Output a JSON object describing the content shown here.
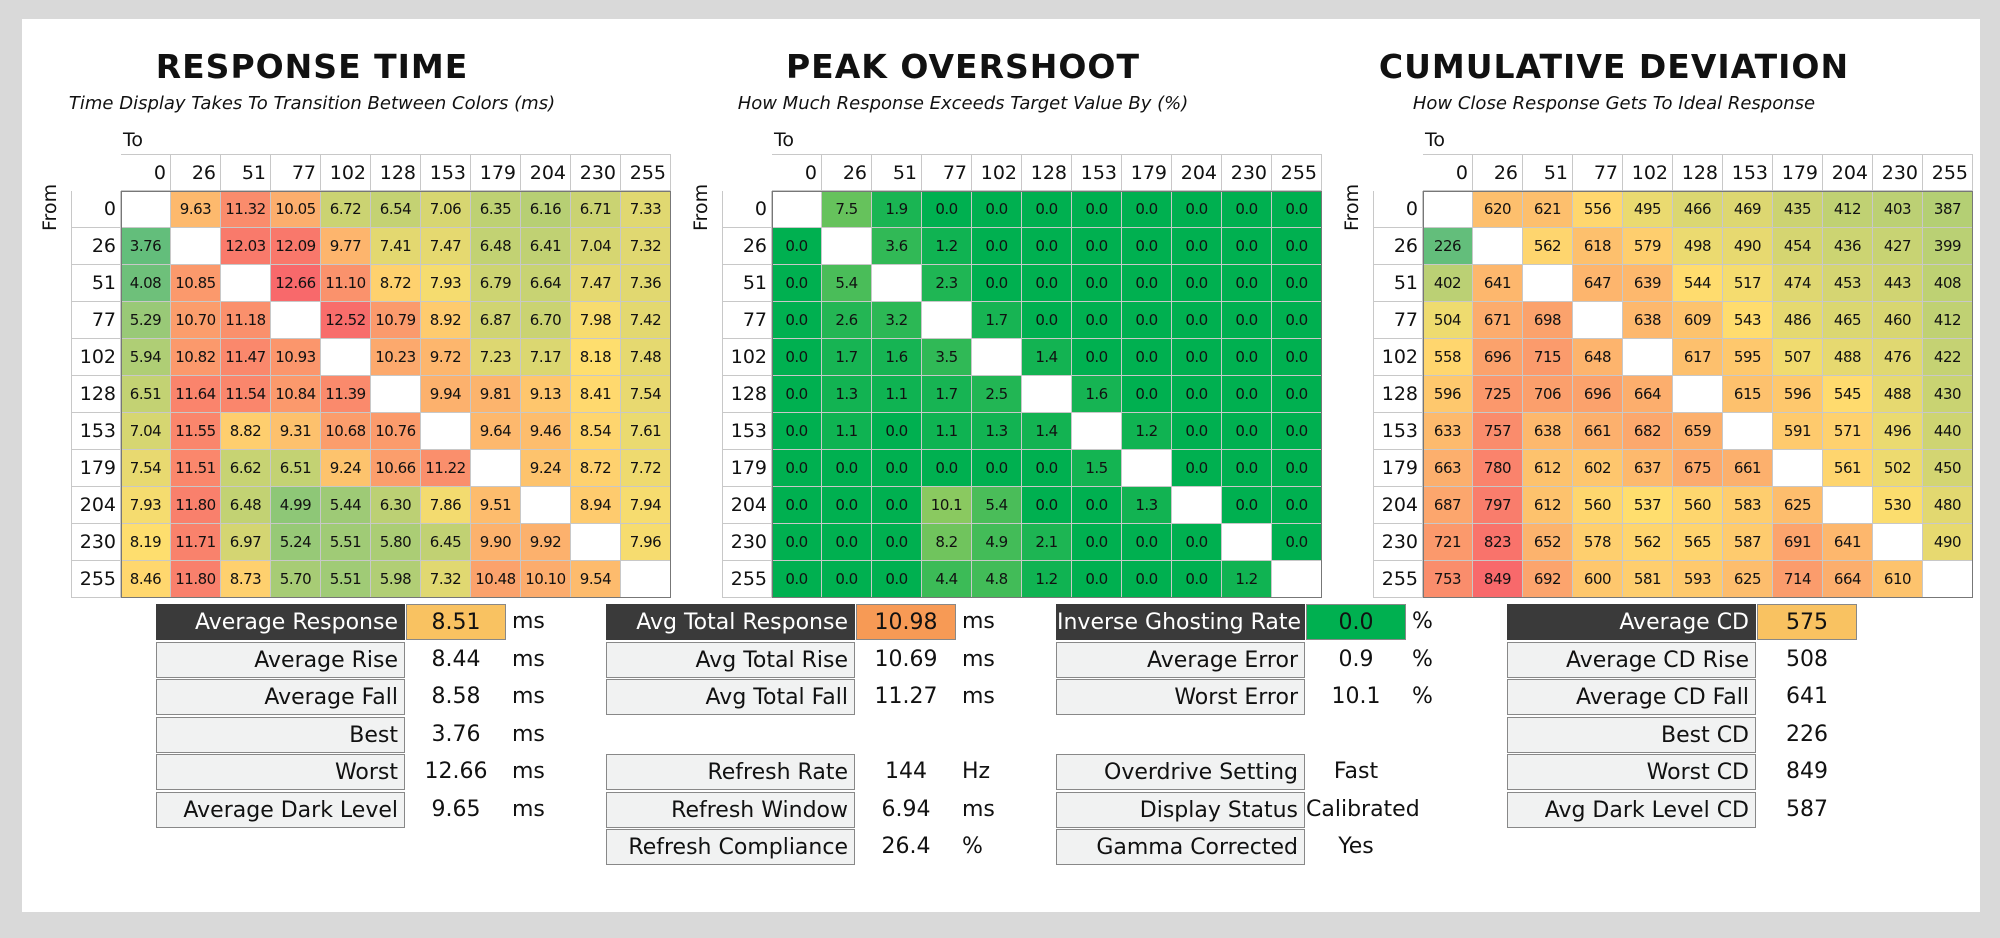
{
  "levels": [
    "0",
    "26",
    "51",
    "77",
    "102",
    "128",
    "153",
    "179",
    "204",
    "230",
    "255"
  ],
  "axis": {
    "to_label": "To",
    "from_label": "From"
  },
  "colors": {
    "dark_header": "#3a3a3a",
    "avg_response": "#f9c261",
    "avg_total_response": "#f79a55",
    "inverse_ghosting": "#00b050",
    "average_cd": "#f9c261"
  },
  "chart_data": [
    {
      "type": "heatmap",
      "title": "RESPONSE TIME",
      "subtitle": "Time Display Takes To Transition Between Colors (ms)",
      "xlabel": "To",
      "ylabel": "From",
      "x": [
        "0",
        "26",
        "51",
        "77",
        "102",
        "128",
        "153",
        "179",
        "204",
        "230",
        "255"
      ],
      "y": [
        "0",
        "26",
        "51",
        "77",
        "102",
        "128",
        "153",
        "179",
        "204",
        "230",
        "255"
      ],
      "values": [
        [
          null,
          "9.63",
          "11.32",
          "10.05",
          "6.72",
          "6.54",
          "7.06",
          "6.35",
          "6.16",
          "6.71",
          "7.33"
        ],
        [
          "3.76",
          null,
          "12.03",
          "12.09",
          "9.77",
          "7.41",
          "7.47",
          "6.48",
          "6.41",
          "7.04",
          "7.32"
        ],
        [
          "4.08",
          "10.85",
          null,
          "12.66",
          "11.10",
          "8.72",
          "7.93",
          "6.79",
          "6.64",
          "7.47",
          "7.36"
        ],
        [
          "5.29",
          "10.70",
          "11.18",
          null,
          "12.52",
          "10.79",
          "8.92",
          "6.87",
          "6.70",
          "7.98",
          "7.42"
        ],
        [
          "5.94",
          "10.82",
          "11.47",
          "10.93",
          null,
          "10.23",
          "9.72",
          "7.23",
          "7.17",
          "8.18",
          "7.48"
        ],
        [
          "6.51",
          "11.64",
          "11.54",
          "10.84",
          "11.39",
          null,
          "9.94",
          "9.81",
          "9.13",
          "8.41",
          "7.54"
        ],
        [
          "7.04",
          "11.55",
          "8.82",
          "9.31",
          "10.68",
          "10.76",
          null,
          "9.64",
          "9.46",
          "8.54",
          "7.61"
        ],
        [
          "7.54",
          "11.51",
          "6.62",
          "6.51",
          "9.24",
          "10.66",
          "11.22",
          null,
          "9.24",
          "8.72",
          "7.72"
        ],
        [
          "7.93",
          "11.80",
          "6.48",
          "4.99",
          "5.44",
          "6.30",
          "7.86",
          "9.51",
          null,
          "8.94",
          "7.94"
        ],
        [
          "8.19",
          "11.71",
          "6.97",
          "5.24",
          "5.51",
          "5.80",
          "6.45",
          "9.90",
          "9.92",
          null,
          "7.96"
        ],
        [
          "8.46",
          "11.80",
          "8.73",
          "5.70",
          "5.51",
          "5.98",
          "7.32",
          "10.48",
          "10.10",
          "9.54",
          null
        ]
      ],
      "color_scale": "green-yellow-red"
    },
    {
      "type": "heatmap",
      "title": "PEAK OVERSHOOT",
      "subtitle": "How Much Response Exceeds Target Value By (%)",
      "xlabel": "To",
      "ylabel": "From",
      "x": [
        "0",
        "26",
        "51",
        "77",
        "102",
        "128",
        "153",
        "179",
        "204",
        "230",
        "255"
      ],
      "y": [
        "0",
        "26",
        "51",
        "77",
        "102",
        "128",
        "153",
        "179",
        "204",
        "230",
        "255"
      ],
      "values": [
        [
          null,
          "7.5",
          "1.9",
          "0.0",
          "0.0",
          "0.0",
          "0.0",
          "0.0",
          "0.0",
          "0.0",
          "0.0"
        ],
        [
          "0.0",
          null,
          "3.6",
          "1.2",
          "0.0",
          "0.0",
          "0.0",
          "0.0",
          "0.0",
          "0.0",
          "0.0"
        ],
        [
          "0.0",
          "5.4",
          null,
          "2.3",
          "0.0",
          "0.0",
          "0.0",
          "0.0",
          "0.0",
          "0.0",
          "0.0"
        ],
        [
          "0.0",
          "2.6",
          "3.2",
          null,
          "1.7",
          "0.0",
          "0.0",
          "0.0",
          "0.0",
          "0.0",
          "0.0"
        ],
        [
          "0.0",
          "1.7",
          "1.6",
          "3.5",
          null,
          "1.4",
          "0.0",
          "0.0",
          "0.0",
          "0.0",
          "0.0"
        ],
        [
          "0.0",
          "1.3",
          "1.1",
          "1.7",
          "2.5",
          null,
          "1.6",
          "0.0",
          "0.0",
          "0.0",
          "0.0"
        ],
        [
          "0.0",
          "1.1",
          "0.0",
          "1.1",
          "1.3",
          "1.4",
          null,
          "1.2",
          "0.0",
          "0.0",
          "0.0"
        ],
        [
          "0.0",
          "0.0",
          "0.0",
          "0.0",
          "0.0",
          "0.0",
          "1.5",
          null,
          "0.0",
          "0.0",
          "0.0"
        ],
        [
          "0.0",
          "0.0",
          "0.0",
          "10.1",
          "5.4",
          "0.0",
          "0.0",
          "1.3",
          null,
          "0.0",
          "0.0"
        ],
        [
          "0.0",
          "0.0",
          "0.0",
          "8.2",
          "4.9",
          "2.1",
          "0.0",
          "0.0",
          "0.0",
          null,
          "0.0"
        ],
        [
          "0.0",
          "0.0",
          "0.0",
          "4.4",
          "4.8",
          "1.2",
          "0.0",
          "0.0",
          "0.0",
          "1.2",
          null
        ]
      ],
      "color_scale": "green"
    },
    {
      "type": "heatmap",
      "title": "CUMULATIVE DEVIATION",
      "subtitle": "How Close Response Gets To Ideal Response",
      "xlabel": "To",
      "ylabel": "From",
      "x": [
        "0",
        "26",
        "51",
        "77",
        "102",
        "128",
        "153",
        "179",
        "204",
        "230",
        "255"
      ],
      "y": [
        "0",
        "26",
        "51",
        "77",
        "102",
        "128",
        "153",
        "179",
        "204",
        "230",
        "255"
      ],
      "values": [
        [
          null,
          "620",
          "621",
          "556",
          "495",
          "466",
          "469",
          "435",
          "412",
          "403",
          "387"
        ],
        [
          "226",
          null,
          "562",
          "618",
          "579",
          "498",
          "490",
          "454",
          "436",
          "427",
          "399"
        ],
        [
          "402",
          "641",
          null,
          "647",
          "639",
          "544",
          "517",
          "474",
          "453",
          "443",
          "408"
        ],
        [
          "504",
          "671",
          "698",
          null,
          "638",
          "609",
          "543",
          "486",
          "465",
          "460",
          "412"
        ],
        [
          "558",
          "696",
          "715",
          "648",
          null,
          "617",
          "595",
          "507",
          "488",
          "476",
          "422"
        ],
        [
          "596",
          "725",
          "706",
          "696",
          "664",
          null,
          "615",
          "596",
          "545",
          "488",
          "430"
        ],
        [
          "633",
          "757",
          "638",
          "661",
          "682",
          "659",
          null,
          "591",
          "571",
          "496",
          "440"
        ],
        [
          "663",
          "780",
          "612",
          "602",
          "637",
          "675",
          "661",
          null,
          "561",
          "502",
          "450"
        ],
        [
          "687",
          "797",
          "612",
          "560",
          "537",
          "560",
          "583",
          "625",
          null,
          "530",
          "480"
        ],
        [
          "721",
          "823",
          "652",
          "578",
          "562",
          "565",
          "587",
          "691",
          "641",
          null,
          "490"
        ],
        [
          "753",
          "849",
          "692",
          "600",
          "581",
          "593",
          "625",
          "714",
          "664",
          "610",
          null
        ]
      ],
      "color_scale": "green-yellow-red"
    }
  ],
  "stats": [
    {
      "rows": [
        {
          "label": "Average Response",
          "value": "8.51",
          "unit": "ms",
          "header": true,
          "fill": "#f9c261"
        },
        {
          "label": "Average Rise",
          "value": "8.44",
          "unit": "ms"
        },
        {
          "label": "Average Fall",
          "value": "8.58",
          "unit": "ms"
        },
        {
          "label": "Best",
          "value": "3.76",
          "unit": "ms"
        },
        {
          "label": "Worst",
          "value": "12.66",
          "unit": "ms"
        },
        {
          "label": "Average Dark Level",
          "value": "9.65",
          "unit": "ms"
        }
      ]
    },
    {
      "rows": [
        {
          "label": "Avg Total Response",
          "value": "10.98",
          "unit": "ms",
          "header": true,
          "fill": "#f79a55"
        },
        {
          "label": "Avg Total Rise",
          "value": "10.69",
          "unit": "ms"
        },
        {
          "label": "Avg Total Fall",
          "value": "11.27",
          "unit": "ms"
        },
        null,
        {
          "label": "Refresh Rate",
          "value": "144",
          "unit": "Hz"
        },
        {
          "label": "Refresh Window",
          "value": "6.94",
          "unit": "ms"
        },
        {
          "label": "Refresh Compliance",
          "value": "26.4",
          "unit": "%"
        }
      ]
    },
    {
      "rows": [
        {
          "label": "Inverse Ghosting Rate",
          "value": "0.0",
          "unit": "%",
          "header": true,
          "fill": "#00b050"
        },
        {
          "label": "Average Error",
          "value": "0.9",
          "unit": "%"
        },
        {
          "label": "Worst Error",
          "value": "10.1",
          "unit": "%"
        },
        null,
        {
          "label": "Overdrive Setting",
          "value": "Fast",
          "unit": ""
        },
        {
          "label": "Display Status",
          "value": "Calibrated",
          "unit": ""
        },
        {
          "label": "Gamma Corrected",
          "value": "Yes",
          "unit": ""
        }
      ]
    },
    {
      "rows": [
        {
          "label": "Average CD",
          "value": "575",
          "unit": "",
          "header": true,
          "fill": "#f9c261"
        },
        {
          "label": "Average CD Rise",
          "value": "508",
          "unit": ""
        },
        {
          "label": "Average CD Fall",
          "value": "641",
          "unit": ""
        },
        {
          "label": "Best CD",
          "value": "226",
          "unit": ""
        },
        {
          "label": "Worst CD",
          "value": "849",
          "unit": ""
        },
        {
          "label": "Avg Dark Level CD",
          "value": "587",
          "unit": ""
        }
      ]
    }
  ]
}
